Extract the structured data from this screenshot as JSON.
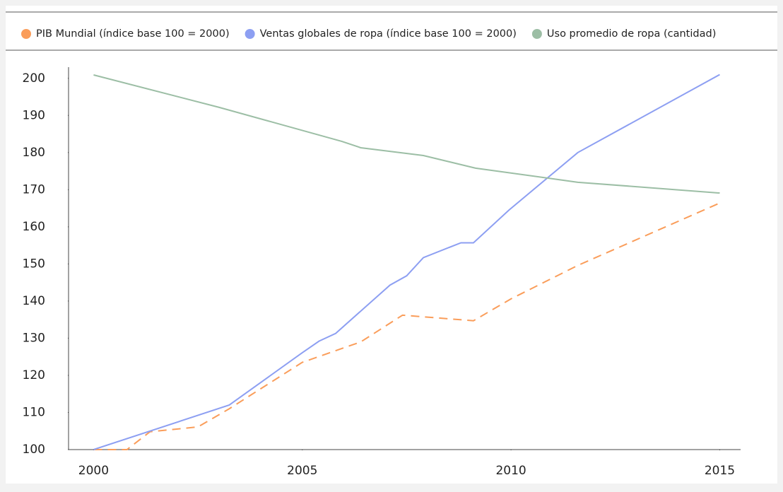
{
  "chart_data": {
    "type": "line",
    "legend": "top",
    "xlim": [
      1999.4,
      2015.5
    ],
    "xticks": [
      2000,
      2005,
      2010,
      2015
    ],
    "ylim": [
      100,
      203
    ],
    "yticks": [
      100,
      110,
      120,
      130,
      140,
      150,
      160,
      170,
      180,
      190,
      200
    ],
    "series": [
      {
        "name": "PIB Mundial (índice base 100 = 2000)",
        "color": "#fa9d5a",
        "dashed": true,
        "x": [
          2000,
          2000.8,
          2001.35,
          2002.5,
          2003.25,
          2005,
          2006.4,
          2007.4,
          2009.1,
          2010,
          2011.6,
          2015
        ],
        "values": [
          100,
          100,
          104.8,
          106.1,
          111,
          123.5,
          129,
          136.2,
          134.7,
          140.6,
          149.6,
          166.4
        ]
      },
      {
        "name": "Ventas globales de ropa (índice base 100 = 2000)",
        "color": "#8d9ff2",
        "dashed": false,
        "x": [
          2000,
          2003.25,
          2005,
          2005.4,
          2005.8,
          2007.1,
          2007.5,
          2007.9,
          2008.8,
          2009.1,
          2009.95,
          2011.6,
          2015
        ],
        "values": [
          100,
          112,
          126.1,
          129.2,
          131.3,
          144.3,
          146.8,
          151.7,
          155.7,
          155.7,
          164.5,
          180,
          201
        ]
      },
      {
        "name": "Uso promedio de ropa (cantidad)",
        "color": "#9cbea5",
        "dashed": false,
        "x": [
          2000,
          2003,
          2005.95,
          2006.4,
          2007.9,
          2009.15,
          2011.6,
          2015
        ],
        "values": [
          200.9,
          192.2,
          183,
          181.3,
          179.2,
          175.8,
          172,
          169.1
        ]
      }
    ]
  }
}
